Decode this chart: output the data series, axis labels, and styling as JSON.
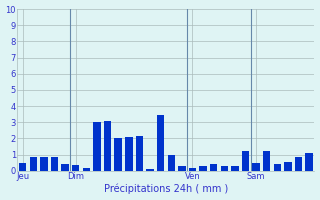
{
  "title": "",
  "xlabel": "Précipitations 24h ( mm )",
  "ylabel": "",
  "ylim": [
    0,
    10
  ],
  "yticks": [
    0,
    1,
    2,
    3,
    4,
    5,
    6,
    7,
    8,
    9,
    10
  ],
  "background_color": "#dff4f4",
  "bar_color": "#0033cc",
  "grid_color": "#aabbbb",
  "vline_color": "#6688aa",
  "label_color": "#3333cc",
  "bar_values": [
    0.5,
    0.85,
    0.85,
    0.85,
    0.45,
    0.35,
    0.2,
    3.0,
    3.05,
    2.0,
    2.1,
    2.15,
    0.1,
    3.45,
    0.95,
    0.3,
    0.15,
    0.3,
    0.45,
    0.3,
    0.3,
    1.25,
    0.5,
    1.2,
    0.4,
    0.55,
    0.85,
    1.1
  ],
  "day_labels": [
    "Jeu",
    "Dim",
    "Ven",
    "Sam"
  ],
  "day_positions": [
    0,
    5,
    16,
    22
  ],
  "vline_positions": [
    5,
    16,
    22
  ],
  "num_bars": 28
}
